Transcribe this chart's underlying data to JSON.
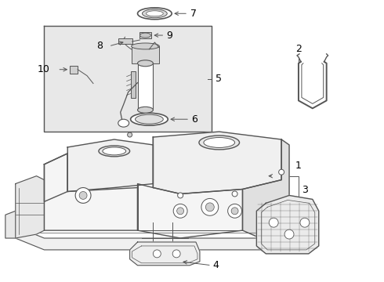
{
  "background_color": "#f5f5f5",
  "line_color": "#555555",
  "figsize": [
    4.9,
    3.6
  ],
  "dpi": 100,
  "label_fontsize": 8,
  "lw": 1.0
}
